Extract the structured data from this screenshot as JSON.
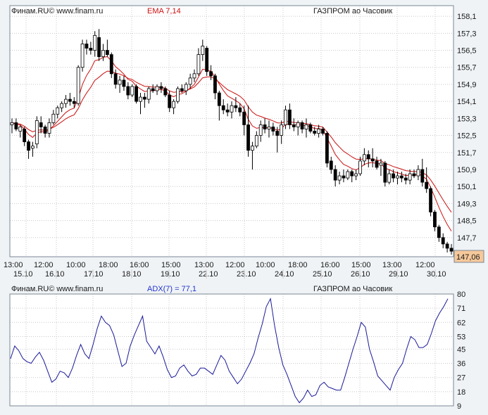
{
  "colors": {
    "background": "#eff3f6",
    "panel": "#ffffff",
    "grid": "#c8c8c8",
    "frame": "#7a8794",
    "text": "#1a1a1a",
    "ema": "#cc1111",
    "adx_line": "#1a1a99",
    "adx_label": "#2233cc",
    "price_tag": "#f6c89a"
  },
  "price_panel": {
    "header_left": "Финам.RU© www.finam.ru",
    "indicator_label": "EMA 7,14",
    "instrument": "ГАЗПРОМ ао Часовик",
    "current_price_label": "147,06"
  },
  "adx_panel": {
    "header_left": "Финам.RU© www.finam.ru",
    "indicator_label": "ADX(7) = 77,1",
    "instrument": "ГАЗПРОМ ао Часовик"
  },
  "chart_data": [
    {
      "type": "candlestick",
      "title": "ГАЗПРОМ ао Часовик",
      "legend": [
        "EMA 7,14"
      ],
      "ylim": [
        146.8,
        158.6
      ],
      "y_ticks": [
        "158,1",
        "157,3",
        "156,5",
        "155,7",
        "154,9",
        "154,1",
        "153,3",
        "152,5",
        "151,7",
        "150,9",
        "150,1",
        "149,3",
        "148,5",
        "147,7"
      ],
      "x_time_labels": [
        "13:00",
        "12:00",
        "10:00",
        "18:00",
        "16:00",
        "15:00",
        "13:00",
        "12:00",
        "10:00",
        "18:00",
        "16:00",
        "15:00",
        "13:00",
        "12:00"
      ],
      "x_date_labels": [
        "15.10",
        "16.10",
        "17.10",
        "18.10",
        "19.10",
        "22.10",
        "23.10",
        "24.10",
        "25.10",
        "26.10",
        "29.10",
        "30.10"
      ],
      "grid": true,
      "last_price": 147.06,
      "candles": [
        {
          "o": 153.0,
          "h": 153.3,
          "l": 152.6,
          "c": 153.1
        },
        {
          "o": 153.1,
          "h": 153.3,
          "l": 152.7,
          "c": 152.8
        },
        {
          "o": 152.7,
          "h": 153.0,
          "l": 152.4,
          "c": 152.9
        },
        {
          "o": 152.8,
          "h": 152.9,
          "l": 152.0,
          "c": 152.2
        },
        {
          "o": 152.2,
          "h": 152.3,
          "l": 151.4,
          "c": 151.8
        },
        {
          "o": 151.9,
          "h": 152.2,
          "l": 151.5,
          "c": 152.0
        },
        {
          "o": 152.1,
          "h": 153.4,
          "l": 151.9,
          "c": 153.2
        },
        {
          "o": 153.1,
          "h": 153.4,
          "l": 152.6,
          "c": 152.9
        },
        {
          "o": 152.9,
          "h": 153.0,
          "l": 152.4,
          "c": 152.6
        },
        {
          "o": 152.6,
          "h": 153.3,
          "l": 152.4,
          "c": 153.1
        },
        {
          "o": 153.1,
          "h": 153.7,
          "l": 153.0,
          "c": 153.5
        },
        {
          "o": 153.5,
          "h": 153.9,
          "l": 153.3,
          "c": 153.8
        },
        {
          "o": 153.8,
          "h": 154.1,
          "l": 153.6,
          "c": 154.0
        },
        {
          "o": 154.0,
          "h": 154.4,
          "l": 153.8,
          "c": 154.2
        },
        {
          "o": 154.2,
          "h": 154.5,
          "l": 153.9,
          "c": 154.1
        },
        {
          "o": 154.1,
          "h": 154.3,
          "l": 153.8,
          "c": 154.0
        },
        {
          "o": 154.0,
          "h": 155.8,
          "l": 153.9,
          "c": 155.7
        },
        {
          "o": 155.7,
          "h": 157.0,
          "l": 155.5,
          "c": 156.8
        },
        {
          "o": 156.8,
          "h": 157.0,
          "l": 156.3,
          "c": 156.6
        },
        {
          "o": 156.6,
          "h": 156.9,
          "l": 156.3,
          "c": 156.5
        },
        {
          "o": 156.5,
          "h": 157.4,
          "l": 156.2,
          "c": 157.2
        },
        {
          "o": 157.1,
          "h": 157.5,
          "l": 156.0,
          "c": 156.2
        },
        {
          "o": 156.2,
          "h": 156.8,
          "l": 156.0,
          "c": 156.5
        },
        {
          "o": 156.5,
          "h": 157.0,
          "l": 156.2,
          "c": 156.3
        },
        {
          "o": 156.3,
          "h": 156.4,
          "l": 155.2,
          "c": 155.4
        },
        {
          "o": 155.4,
          "h": 155.6,
          "l": 154.7,
          "c": 154.9
        },
        {
          "o": 154.9,
          "h": 155.3,
          "l": 154.5,
          "c": 155.1
        },
        {
          "o": 155.1,
          "h": 155.3,
          "l": 154.6,
          "c": 154.8
        },
        {
          "o": 154.8,
          "h": 155.0,
          "l": 154.2,
          "c": 154.4
        },
        {
          "o": 154.4,
          "h": 154.9,
          "l": 154.3,
          "c": 154.8
        },
        {
          "o": 154.8,
          "h": 154.9,
          "l": 154.0,
          "c": 154.1
        },
        {
          "o": 154.1,
          "h": 154.5,
          "l": 153.5,
          "c": 154.3
        },
        {
          "o": 154.3,
          "h": 154.5,
          "l": 153.8,
          "c": 154.2
        },
        {
          "o": 154.2,
          "h": 154.8,
          "l": 154.0,
          "c": 154.7
        },
        {
          "o": 154.7,
          "h": 154.9,
          "l": 154.5,
          "c": 154.6
        },
        {
          "o": 154.6,
          "h": 154.9,
          "l": 154.4,
          "c": 154.8
        },
        {
          "o": 154.8,
          "h": 155.0,
          "l": 154.5,
          "c": 154.7
        },
        {
          "o": 154.7,
          "h": 154.8,
          "l": 154.3,
          "c": 154.4
        },
        {
          "o": 154.4,
          "h": 154.6,
          "l": 153.6,
          "c": 153.8
        },
        {
          "o": 153.8,
          "h": 154.2,
          "l": 153.5,
          "c": 154.1
        },
        {
          "o": 154.1,
          "h": 154.8,
          "l": 154.0,
          "c": 154.7
        },
        {
          "o": 154.7,
          "h": 154.9,
          "l": 154.5,
          "c": 154.6
        },
        {
          "o": 154.6,
          "h": 155.0,
          "l": 154.4,
          "c": 154.9
        },
        {
          "o": 154.9,
          "h": 155.4,
          "l": 154.7,
          "c": 155.2
        },
        {
          "o": 155.2,
          "h": 155.6,
          "l": 155.0,
          "c": 155.4
        },
        {
          "o": 155.4,
          "h": 156.6,
          "l": 155.3,
          "c": 156.3
        },
        {
          "o": 156.3,
          "h": 157.0,
          "l": 156.0,
          "c": 156.7
        },
        {
          "o": 156.6,
          "h": 156.7,
          "l": 155.3,
          "c": 155.5
        },
        {
          "o": 155.5,
          "h": 155.8,
          "l": 155.1,
          "c": 155.3
        },
        {
          "o": 155.3,
          "h": 155.4,
          "l": 154.2,
          "c": 154.5
        },
        {
          "o": 154.5,
          "h": 154.6,
          "l": 153.2,
          "c": 153.9
        },
        {
          "o": 153.9,
          "h": 154.2,
          "l": 153.5,
          "c": 153.7
        },
        {
          "o": 153.7,
          "h": 154.0,
          "l": 153.4,
          "c": 153.6
        },
        {
          "o": 153.6,
          "h": 154.1,
          "l": 153.3,
          "c": 153.9
        },
        {
          "o": 153.9,
          "h": 154.3,
          "l": 153.6,
          "c": 153.8
        },
        {
          "o": 153.8,
          "h": 154.0,
          "l": 153.4,
          "c": 153.6
        },
        {
          "o": 153.6,
          "h": 153.9,
          "l": 152.5,
          "c": 153.0
        },
        {
          "o": 153.0,
          "h": 153.9,
          "l": 151.5,
          "c": 151.8
        },
        {
          "o": 151.8,
          "h": 152.2,
          "l": 150.9,
          "c": 152.0
        },
        {
          "o": 152.0,
          "h": 152.7,
          "l": 151.9,
          "c": 152.5
        },
        {
          "o": 152.5,
          "h": 153.2,
          "l": 152.2,
          "c": 153.0
        },
        {
          "o": 153.0,
          "h": 153.3,
          "l": 152.6,
          "c": 152.8
        },
        {
          "o": 152.8,
          "h": 153.2,
          "l": 152.4,
          "c": 152.9
        },
        {
          "o": 152.9,
          "h": 153.1,
          "l": 152.5,
          "c": 152.7
        },
        {
          "o": 152.7,
          "h": 152.9,
          "l": 151.7,
          "c": 152.5
        },
        {
          "o": 152.5,
          "h": 153.2,
          "l": 152.1,
          "c": 153.0
        },
        {
          "o": 153.0,
          "h": 153.9,
          "l": 152.8,
          "c": 153.7
        },
        {
          "o": 153.7,
          "h": 154.0,
          "l": 152.8,
          "c": 153.0
        },
        {
          "o": 153.0,
          "h": 153.3,
          "l": 152.7,
          "c": 152.9
        },
        {
          "o": 152.9,
          "h": 153.2,
          "l": 152.5,
          "c": 153.1
        },
        {
          "o": 153.1,
          "h": 153.2,
          "l": 152.6,
          "c": 152.8
        },
        {
          "o": 152.8,
          "h": 153.3,
          "l": 152.4,
          "c": 153.0
        },
        {
          "o": 153.0,
          "h": 153.1,
          "l": 152.6,
          "c": 152.7
        },
        {
          "o": 152.7,
          "h": 152.9,
          "l": 152.5,
          "c": 152.6
        },
        {
          "o": 152.6,
          "h": 153.0,
          "l": 152.4,
          "c": 152.8
        },
        {
          "o": 152.8,
          "h": 152.9,
          "l": 152.5,
          "c": 152.6
        },
        {
          "o": 152.6,
          "h": 152.7,
          "l": 151.0,
          "c": 151.2
        },
        {
          "o": 151.3,
          "h": 151.5,
          "l": 150.7,
          "c": 150.9
        },
        {
          "o": 150.9,
          "h": 151.1,
          "l": 150.1,
          "c": 150.4
        },
        {
          "o": 150.4,
          "h": 150.8,
          "l": 150.2,
          "c": 150.6
        },
        {
          "o": 150.6,
          "h": 150.9,
          "l": 150.3,
          "c": 150.5
        },
        {
          "o": 150.5,
          "h": 150.9,
          "l": 150.4,
          "c": 150.8
        },
        {
          "o": 150.8,
          "h": 150.9,
          "l": 150.3,
          "c": 150.6
        },
        {
          "o": 150.6,
          "h": 150.9,
          "l": 150.4,
          "c": 150.7
        },
        {
          "o": 150.7,
          "h": 151.5,
          "l": 150.6,
          "c": 151.3
        },
        {
          "o": 151.3,
          "h": 151.9,
          "l": 151.1,
          "c": 151.6
        },
        {
          "o": 151.6,
          "h": 151.8,
          "l": 151.0,
          "c": 151.4
        },
        {
          "o": 151.4,
          "h": 151.9,
          "l": 151.0,
          "c": 151.3
        },
        {
          "o": 151.3,
          "h": 151.5,
          "l": 150.9,
          "c": 151.0
        },
        {
          "o": 151.1,
          "h": 151.4,
          "l": 150.6,
          "c": 151.2
        },
        {
          "o": 151.2,
          "h": 151.3,
          "l": 150.1,
          "c": 150.3
        },
        {
          "o": 150.3,
          "h": 150.9,
          "l": 150.2,
          "c": 150.7
        },
        {
          "o": 150.7,
          "h": 150.9,
          "l": 150.3,
          "c": 150.5
        },
        {
          "o": 150.5,
          "h": 150.8,
          "l": 150.2,
          "c": 150.6
        },
        {
          "o": 150.6,
          "h": 150.8,
          "l": 150.3,
          "c": 150.5
        },
        {
          "o": 150.5,
          "h": 150.7,
          "l": 150.2,
          "c": 150.4
        },
        {
          "o": 150.4,
          "h": 150.9,
          "l": 150.2,
          "c": 150.7
        },
        {
          "o": 150.7,
          "h": 150.9,
          "l": 150.5,
          "c": 150.6
        },
        {
          "o": 150.6,
          "h": 151.1,
          "l": 150.4,
          "c": 150.9
        },
        {
          "o": 150.9,
          "h": 151.4,
          "l": 150.1,
          "c": 150.3
        },
        {
          "o": 150.3,
          "h": 151.0,
          "l": 149.8,
          "c": 150.0
        },
        {
          "o": 150.0,
          "h": 150.1,
          "l": 148.7,
          "c": 148.9
        },
        {
          "o": 148.9,
          "h": 149.0,
          "l": 148.0,
          "c": 148.2
        },
        {
          "o": 148.2,
          "h": 148.3,
          "l": 147.5,
          "c": 147.7
        },
        {
          "o": 147.7,
          "h": 147.9,
          "l": 147.2,
          "c": 147.4
        },
        {
          "o": 147.4,
          "h": 147.5,
          "l": 147.0,
          "c": 147.2
        },
        {
          "o": 147.2,
          "h": 147.4,
          "l": 146.9,
          "c": 147.06
        }
      ]
    },
    {
      "type": "line",
      "title": "ADX(7) = 77,1",
      "ylim": [
        9,
        80
      ],
      "y_ticks": [
        "80",
        "71",
        "62",
        "53",
        "45",
        "36",
        "27",
        "18",
        "9"
      ],
      "grid": true,
      "values": [
        39,
        47,
        44,
        39,
        37,
        36,
        40,
        43,
        38,
        31,
        24,
        26,
        31,
        30,
        27,
        33,
        41,
        48,
        42,
        39,
        48,
        58,
        66,
        62,
        60,
        54,
        44,
        34,
        36,
        47,
        54,
        60,
        66,
        50,
        46,
        42,
        47,
        40,
        32,
        27,
        28,
        33,
        35,
        31,
        28,
        29,
        33,
        33,
        31,
        29,
        35,
        41,
        38,
        31,
        27,
        23,
        26,
        31,
        36,
        42,
        52,
        61,
        72,
        77,
        60,
        46,
        35,
        29,
        22,
        15,
        11,
        14,
        19,
        15,
        16,
        22,
        24,
        21,
        20,
        19,
        19,
        27,
        36,
        45,
        53,
        62,
        59,
        45,
        37,
        28,
        25,
        22,
        19,
        27,
        32,
        36,
        45,
        53,
        51,
        46,
        46,
        48,
        55,
        63,
        68,
        72,
        77
      ]
    }
  ]
}
